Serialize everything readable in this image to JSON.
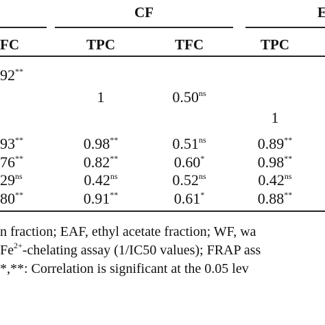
{
  "table": {
    "groups": [
      "CF",
      "E"
    ],
    "columns": [
      "FC",
      "TPC",
      "TFC",
      "TPC"
    ],
    "rows": [
      [
        {
          "text": "92",
          "sup": "**"
        },
        null,
        null,
        null
      ],
      [
        null,
        {
          "text": "1"
        },
        {
          "text": "0.50",
          "sup": "ns"
        },
        null
      ],
      [
        null,
        null,
        null,
        {
          "text": "1"
        }
      ],
      [
        {
          "text": "93",
          "sup": "**"
        },
        {
          "text": "0.98",
          "sup": "**"
        },
        {
          "text": "0.51",
          "sup": "ns"
        },
        {
          "text": "0.89",
          "sup": "**"
        }
      ],
      [
        {
          "text": "76",
          "sup": "**"
        },
        {
          "text": "0.82",
          "sup": "**"
        },
        {
          "text": "0.60",
          "sup": "*"
        },
        {
          "text": "0.98",
          "sup": "**"
        }
      ],
      [
        {
          "text": "29",
          "sup": "ns"
        },
        {
          "text": "0.42",
          "sup": "ns"
        },
        {
          "text": "0.52",
          "sup": "ns"
        },
        {
          "text": "0.42",
          "sup": "ns"
        }
      ],
      [
        {
          "text": "80",
          "sup": "**"
        },
        {
          "text": "0.91",
          "sup": "**"
        },
        {
          "text": "0.61",
          "sup": "*"
        },
        {
          "text": "0.88",
          "sup": "**"
        }
      ]
    ],
    "footnotes": [
      [
        {
          "text": "n fraction; EAF, ethyl acetate fraction; WF, wa"
        }
      ],
      [
        {
          "text": "Fe"
        },
        {
          "sup": "2+"
        },
        {
          "text": "-chelating assay (1/IC50 values); FRAP ass"
        }
      ],
      [
        {
          "text": "*,**: Correlation is significant at the 0.05 lev"
        }
      ]
    ]
  }
}
